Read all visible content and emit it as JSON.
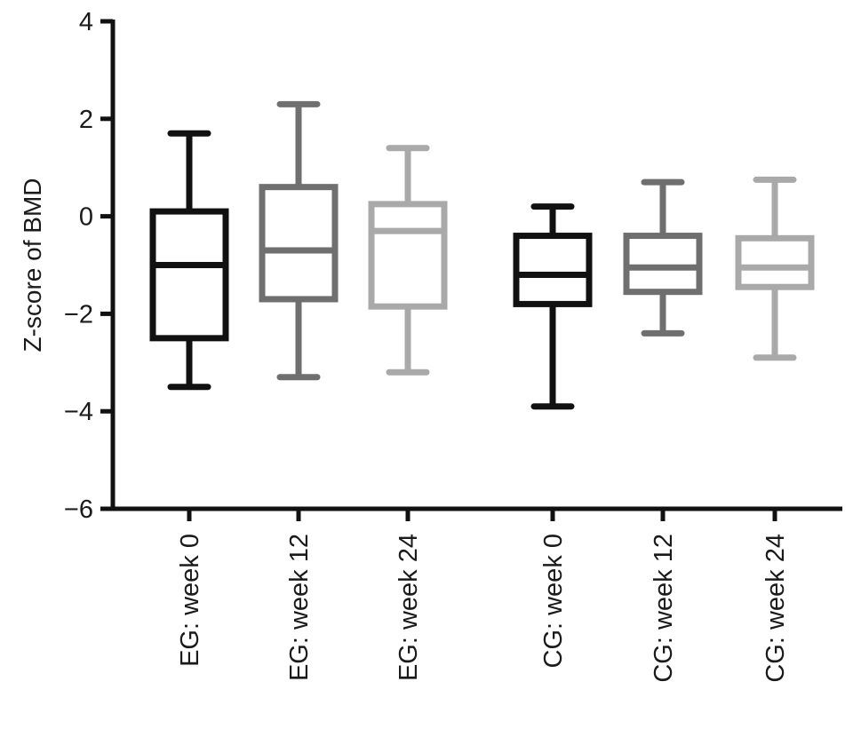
{
  "chart_data": {
    "type": "box",
    "title": "",
    "xlabel": "",
    "ylabel": "Z-score of BMD",
    "ylim": [
      -6,
      4
    ],
    "yticks": [
      4,
      2,
      0,
      -2,
      -4,
      -6
    ],
    "ytick_labels": [
      "4",
      "2",
      "0",
      "−2",
      "−4",
      "−6"
    ],
    "grid": false,
    "legend": "none",
    "categories": [
      "EG: week 0",
      "EG: week 12",
      "EG: week 24",
      "CG: week 0",
      "CG: week 12",
      "CG: week 24"
    ],
    "boxes": [
      {
        "label": "EG: week 0",
        "whisker_low": -3.5,
        "q1": -2.5,
        "median": -1.0,
        "q3": 0.1,
        "whisker_high": 1.7,
        "color": "#111111"
      },
      {
        "label": "EG: week 12",
        "whisker_low": -3.3,
        "q1": -1.7,
        "median": -0.7,
        "q3": 0.6,
        "whisker_high": 2.3,
        "color": "#6f6f6f"
      },
      {
        "label": "EG: week 24",
        "whisker_low": -3.2,
        "q1": -1.85,
        "median": -0.3,
        "q3": 0.25,
        "whisker_high": 1.4,
        "color": "#a9a9a9"
      },
      {
        "label": "CG: week 0",
        "whisker_low": -3.9,
        "q1": -1.8,
        "median": -1.2,
        "q3": -0.4,
        "whisker_high": 0.2,
        "color": "#111111"
      },
      {
        "label": "CG: week 12",
        "whisker_low": -2.4,
        "q1": -1.55,
        "median": -1.05,
        "q3": -0.4,
        "whisker_high": 0.7,
        "color": "#6f6f6f"
      },
      {
        "label": "CG: week 24",
        "whisker_low": -2.9,
        "q1": -1.45,
        "median": -1.05,
        "q3": -0.45,
        "whisker_high": 0.75,
        "color": "#a9a9a9"
      }
    ]
  }
}
